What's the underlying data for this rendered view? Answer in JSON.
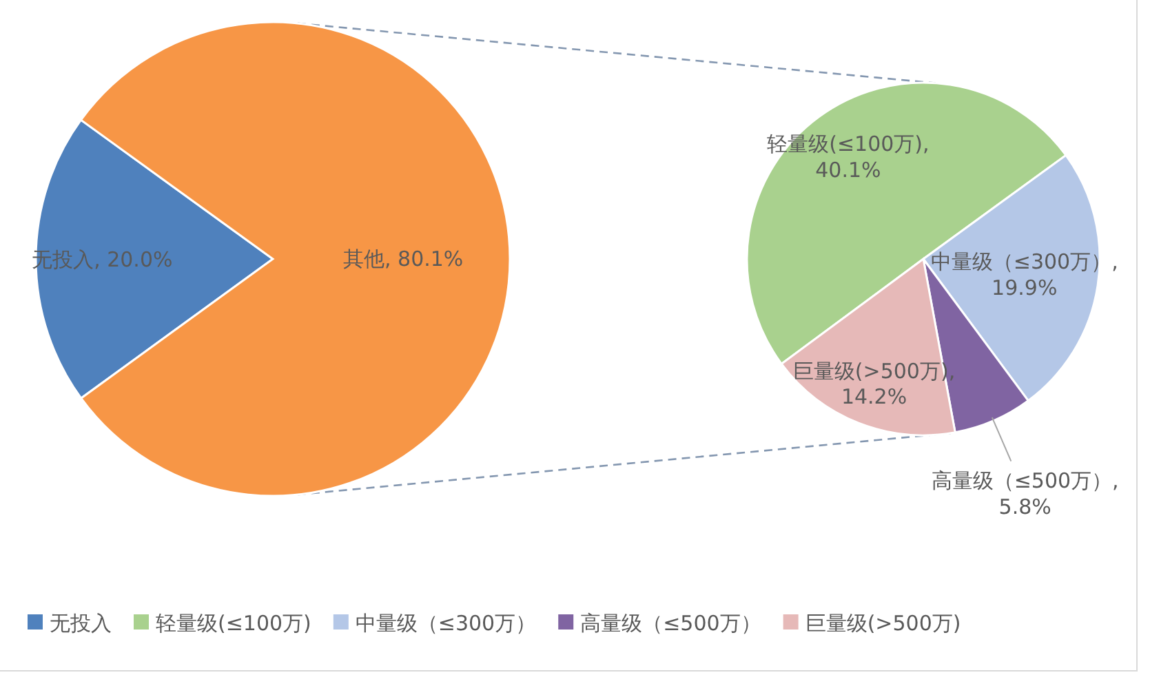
{
  "chart_data": [
    {
      "type": "pie",
      "categories": [
        "无投入",
        "其他"
      ],
      "values": [
        20.0,
        80.1
      ],
      "colors": [
        "#4f81bd",
        "#f79646"
      ],
      "value_labels": [
        ", 20.0%",
        ", 80.1%"
      ],
      "legend": "bottom"
    },
    {
      "type": "pie",
      "categories": [
        "轻量级(≤100万)",
        "中量级（≤300万）",
        "高量级（≤500万）",
        "巨量级(>500万)"
      ],
      "values": [
        40.1,
        19.9,
        5.8,
        14.2
      ],
      "colors": [
        "#a9d18e",
        "#b4c7e7",
        "#8064a2",
        "#e6b9b8"
      ],
      "value_labels": [
        ",\n40.1%",
        ",\n19.9%",
        ",\n5.8%",
        ",\n14.2%"
      ],
      "legend": "bottom"
    }
  ]
}
